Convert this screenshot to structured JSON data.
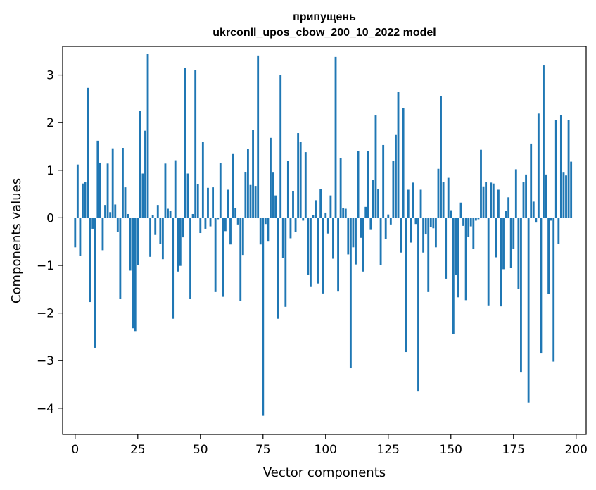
{
  "chart_data": {
    "type": "bar",
    "title_line1": "припущень",
    "title_line2": "ukrconll_upos_cbow_200_10_2022 model",
    "xlabel": "Vector components",
    "ylabel": "Components values",
    "xlim": [
      -5,
      204
    ],
    "ylim": [
      -4.55,
      3.6
    ],
    "xticks": [
      0,
      25,
      50,
      75,
      100,
      125,
      150,
      175,
      200
    ],
    "yticks": [
      -4,
      -3,
      -2,
      -1,
      0,
      1,
      2,
      3
    ],
    "bar_color": "#1f77b4",
    "grid": false,
    "values": [
      -0.62,
      1.12,
      -0.8,
      0.72,
      0.75,
      2.73,
      -1.77,
      -0.23,
      -2.73,
      1.62,
      1.16,
      -0.68,
      0.27,
      1.14,
      0.12,
      1.46,
      0.28,
      -0.29,
      -1.7,
      1.47,
      0.64,
      0.08,
      -1.11,
      -2.32,
      -2.38,
      -0.99,
      2.25,
      0.93,
      1.83,
      3.44,
      -0.82,
      0.06,
      -0.36,
      0.27,
      -0.55,
      -0.87,
      1.14,
      0.19,
      0.15,
      -2.12,
      1.21,
      -1.13,
      -1.01,
      -0.41,
      3.15,
      0.93,
      -1.71,
      0.08,
      3.11,
      0.71,
      -0.32,
      1.6,
      -0.23,
      0.63,
      -0.18,
      0.64,
      -1.56,
      -0.03,
      1.15,
      -1.66,
      -0.28,
      0.59,
      -0.56,
      1.34,
      0.2,
      -0.14,
      -1.75,
      -0.78,
      0.96,
      1.45,
      0.69,
      1.84,
      0.67,
      3.41,
      -0.56,
      -4.16,
      -0.13,
      -0.5,
      1.68,
      0.95,
      0.47,
      -2.12,
      3.0,
      -0.85,
      -1.87,
      1.2,
      -0.43,
      0.56,
      -0.3,
      1.78,
      1.59,
      -0.06,
      1.38,
      -1.2,
      -1.44,
      0.06,
      0.37,
      -1.38,
      0.6,
      -1.59,
      0.11,
      -0.33,
      0.47,
      -0.86,
      3.38,
      -1.55,
      1.26,
      0.2,
      0.19,
      -0.77,
      -3.16,
      -0.62,
      -0.98,
      1.4,
      -0.42,
      -1.13,
      0.23,
      1.41,
      -0.24,
      0.8,
      2.15,
      0.6,
      -1.0,
      1.53,
      -0.45,
      0.07,
      -0.14,
      1.2,
      1.74,
      2.64,
      -0.73,
      2.31,
      -2.82,
      0.59,
      -0.52,
      0.74,
      -0.13,
      -3.65,
      0.59,
      -0.73,
      -0.35,
      -1.56,
      -0.2,
      -0.22,
      -0.62,
      1.03,
      2.55,
      0.76,
      -1.28,
      0.84,
      0.16,
      -2.44,
      -1.2,
      -1.67,
      0.32,
      -0.17,
      -1.73,
      -0.4,
      -0.18,
      -0.66,
      -0.06,
      -0.03,
      1.43,
      0.66,
      0.76,
      -1.84,
      0.74,
      0.72,
      -0.83,
      0.59,
      -1.86,
      -1.08,
      0.15,
      0.43,
      -1.05,
      -0.66,
      1.02,
      -1.5,
      -3.25,
      0.75,
      0.91,
      -3.88,
      1.56,
      0.34,
      -0.1,
      2.19,
      -2.85,
      3.2,
      0.91,
      -1.6,
      -0.06,
      -3.02,
      2.06,
      -0.55,
      2.16,
      0.95,
      0.89,
      2.05,
      1.18
    ]
  }
}
